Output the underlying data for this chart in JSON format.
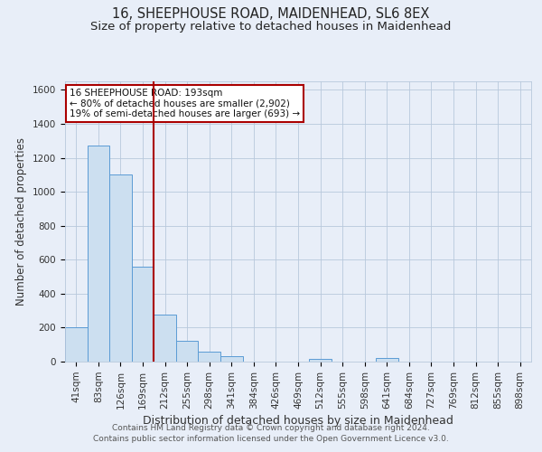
{
  "title": "16, SHEEPHOUSE ROAD, MAIDENHEAD, SL6 8EX",
  "subtitle": "Size of property relative to detached houses in Maidenhead",
  "xlabel": "Distribution of detached houses by size in Maidenhead",
  "ylabel": "Number of detached properties",
  "bar_labels": [
    "41sqm",
    "83sqm",
    "126sqm",
    "169sqm",
    "212sqm",
    "255sqm",
    "298sqm",
    "341sqm",
    "384sqm",
    "426sqm",
    "469sqm",
    "512sqm",
    "555sqm",
    "598sqm",
    "641sqm",
    "684sqm",
    "727sqm",
    "769sqm",
    "812sqm",
    "855sqm",
    "898sqm"
  ],
  "bar_values": [
    200,
    1270,
    1100,
    560,
    275,
    125,
    60,
    30,
    0,
    0,
    0,
    15,
    0,
    0,
    20,
    0,
    0,
    0,
    0,
    0,
    0
  ],
  "bar_color": "#ccdff0",
  "bar_edge_color": "#5b9bd5",
  "ylim": [
    0,
    1650
  ],
  "yticks": [
    0,
    200,
    400,
    600,
    800,
    1000,
    1200,
    1400,
    1600
  ],
  "vline_x": 3.5,
  "vline_color": "#aa0000",
  "annotation_title": "16 SHEEPHOUSE ROAD: 193sqm",
  "annotation_line1": "← 80% of detached houses are smaller (2,902)",
  "annotation_line2": "19% of semi-detached houses are larger (693) →",
  "footer_line1": "Contains HM Land Registry data © Crown copyright and database right 2024.",
  "footer_line2": "Contains public sector information licensed under the Open Government Licence v3.0.",
  "background_color": "#e8eef8",
  "plot_bg_color": "#e8eef8",
  "grid_color": "#b8c8dc",
  "title_fontsize": 10.5,
  "subtitle_fontsize": 9.5,
  "xlabel_fontsize": 9,
  "ylabel_fontsize": 8.5,
  "tick_fontsize": 7.5,
  "footer_fontsize": 6.5
}
